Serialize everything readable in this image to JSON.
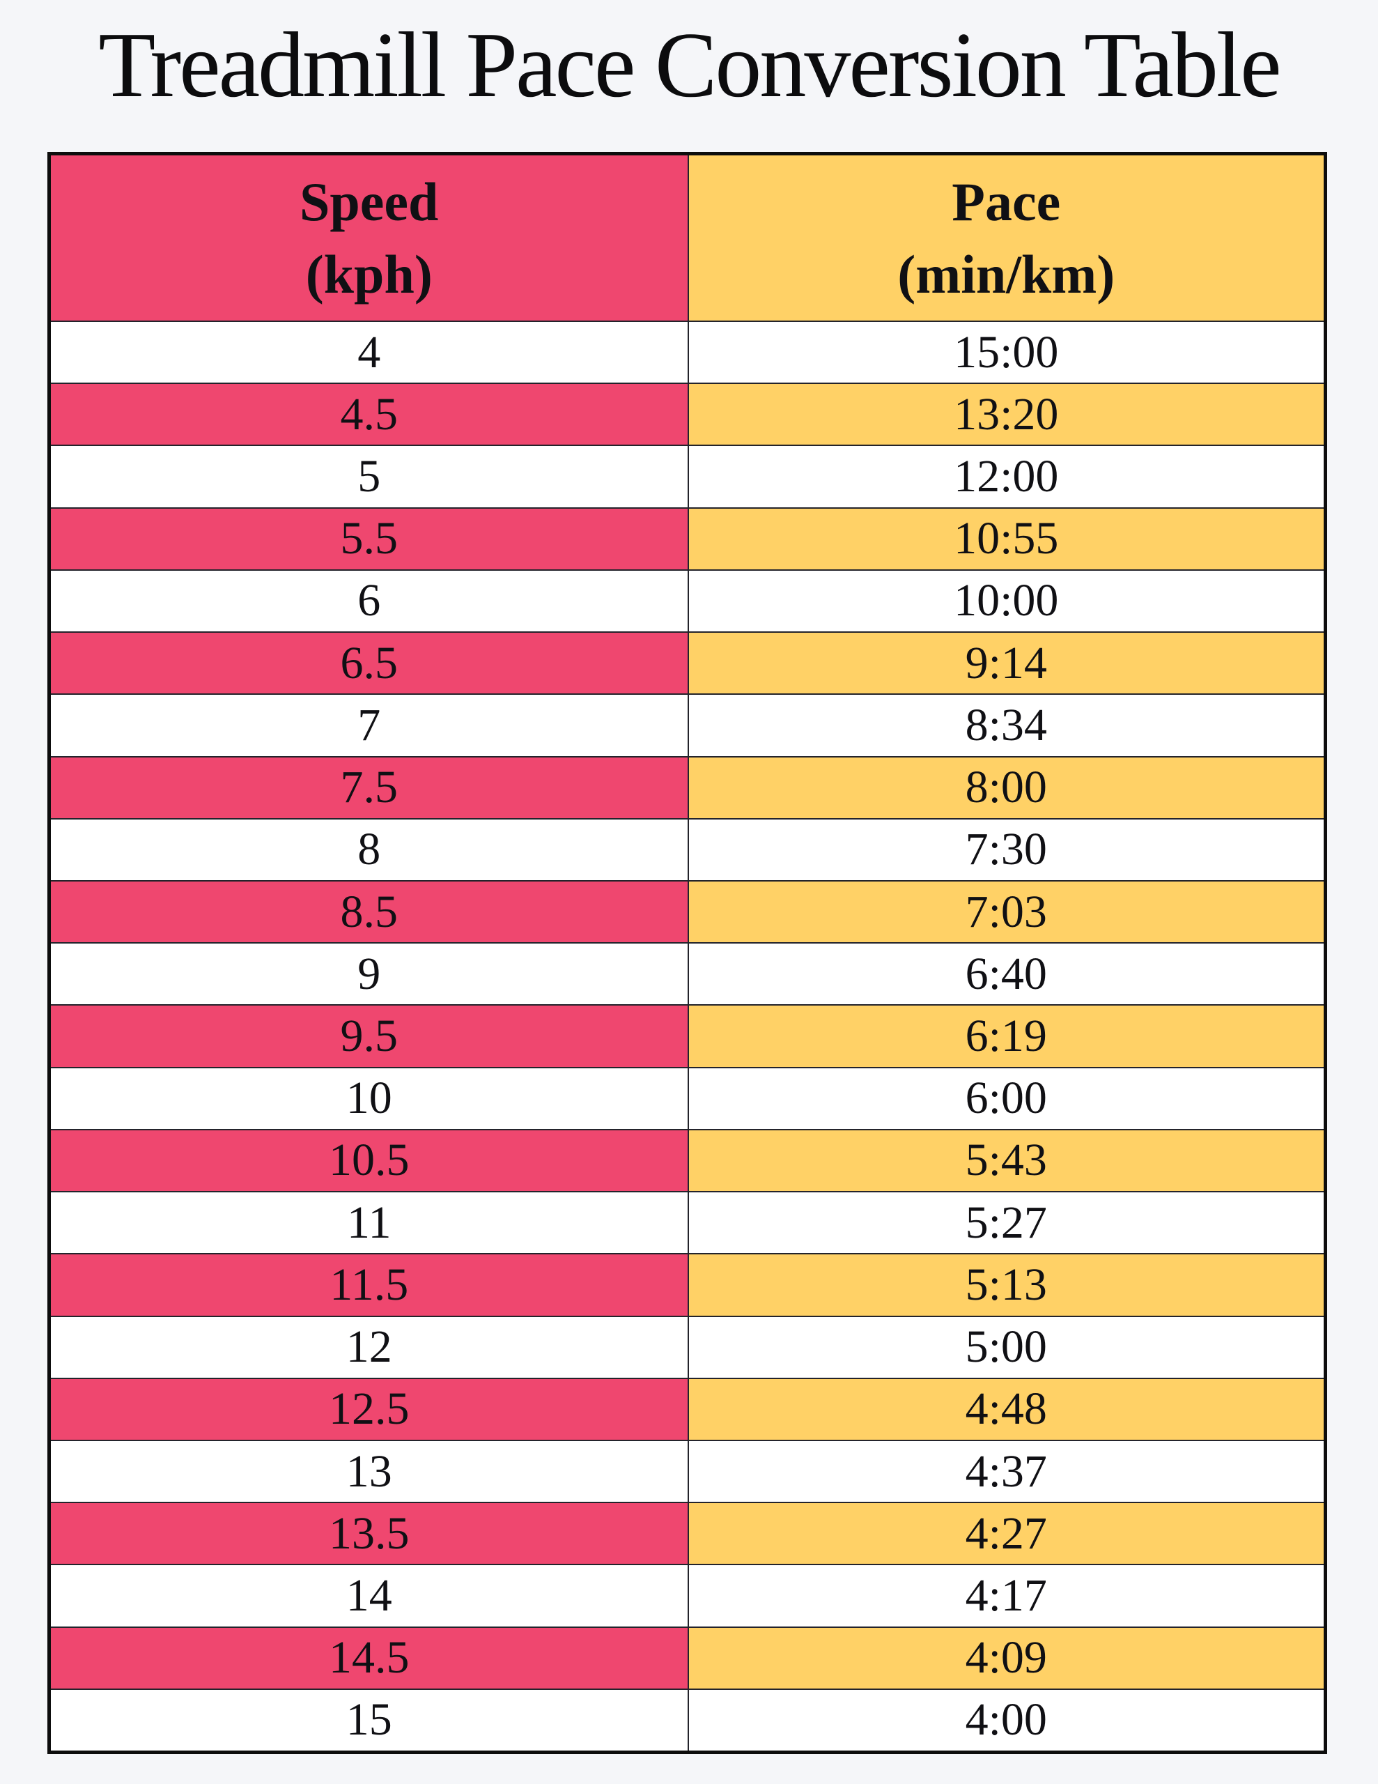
{
  "page": {
    "title": "Treadmill Pace Conversion Table",
    "background": "#F5F6F9"
  },
  "colors": {
    "speed_accent": "#EF476F",
    "pace_accent": "#FFD166",
    "grid_line": "#23232B",
    "outer_border": "#0D0D0D",
    "text": "#101014",
    "row_plain": "#FFFFFF"
  },
  "table": {
    "columns": [
      {
        "title": "Speed",
        "unit": "(kph)"
      },
      {
        "title": "Pace",
        "unit": "(min/km)"
      }
    ],
    "rows": [
      {
        "speed": "4",
        "pace": "15:00"
      },
      {
        "speed": "4.5",
        "pace": "13:20"
      },
      {
        "speed": "5",
        "pace": "12:00"
      },
      {
        "speed": "5.5",
        "pace": "10:55"
      },
      {
        "speed": "6",
        "pace": "10:00"
      },
      {
        "speed": "6.5",
        "pace": "9:14"
      },
      {
        "speed": "7",
        "pace": "8:34"
      },
      {
        "speed": "7.5",
        "pace": "8:00"
      },
      {
        "speed": "8",
        "pace": "7:30"
      },
      {
        "speed": "8.5",
        "pace": "7:03"
      },
      {
        "speed": "9",
        "pace": "6:40"
      },
      {
        "speed": "9.5",
        "pace": "6:19"
      },
      {
        "speed": "10",
        "pace": "6:00"
      },
      {
        "speed": "10.5",
        "pace": "5:43"
      },
      {
        "speed": "11",
        "pace": "5:27"
      },
      {
        "speed": "11.5",
        "pace": "5:13"
      },
      {
        "speed": "12",
        "pace": "5:00"
      },
      {
        "speed": "12.5",
        "pace": "4:48"
      },
      {
        "speed": "13",
        "pace": "4:37"
      },
      {
        "speed": "13.5",
        "pace": "4:27"
      },
      {
        "speed": "14",
        "pace": "4:17"
      },
      {
        "speed": "14.5",
        "pace": "4:09"
      },
      {
        "speed": "15",
        "pace": "4:00"
      }
    ]
  },
  "chart_data": {
    "type": "table",
    "title": "Treadmill Pace Conversion Table",
    "columns": [
      "Speed (kph)",
      "Pace (min/km)"
    ],
    "rows": [
      [
        "4",
        "15:00"
      ],
      [
        "4.5",
        "13:20"
      ],
      [
        "5",
        "12:00"
      ],
      [
        "5.5",
        "10:55"
      ],
      [
        "6",
        "10:00"
      ],
      [
        "6.5",
        "9:14"
      ],
      [
        "7",
        "8:34"
      ],
      [
        "7.5",
        "8:00"
      ],
      [
        "8",
        "7:30"
      ],
      [
        "8.5",
        "7:03"
      ],
      [
        "9",
        "6:40"
      ],
      [
        "9.5",
        "6:19"
      ],
      [
        "10",
        "6:00"
      ],
      [
        "10.5",
        "5:43"
      ],
      [
        "11",
        "5:27"
      ],
      [
        "11.5",
        "5:13"
      ],
      [
        "12",
        "5:00"
      ],
      [
        "12.5",
        "4:48"
      ],
      [
        "13",
        "4:37"
      ],
      [
        "13.5",
        "4:27"
      ],
      [
        "14",
        "4:17"
      ],
      [
        "14.5",
        "4:09"
      ],
      [
        "15",
        "4:00"
      ]
    ]
  }
}
